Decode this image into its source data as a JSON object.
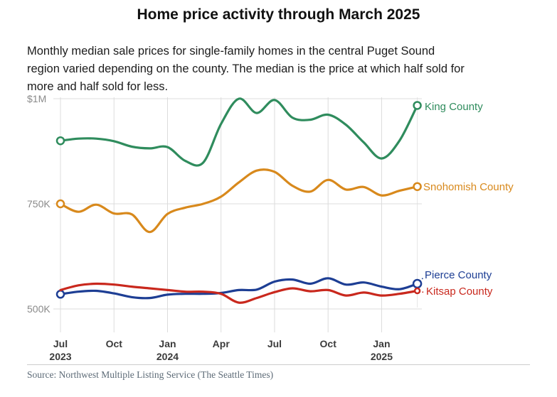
{
  "header": {
    "title": "Home price activity through March 2025",
    "subtitle_lines": [
      "Monthly median sale prices for single-family homes in the central Puget Sound",
      "region varied depending on the county. The median is the price at which half sold for",
      "more and half sold for less."
    ]
  },
  "footer": {
    "source": "Source: Northwest Multiple Listing Service (The Seattle Times)"
  },
  "chart_data": {
    "type": "line",
    "title": "Home price activity through March 2025",
    "unit": "thousand USD",
    "grid": true,
    "legend_position": "end-of-line labels",
    "ylim": [
      475,
      1010
    ],
    "x": [
      "Jul 2023",
      "Aug 2023",
      "Sep 2023",
      "Oct 2023",
      "Nov 2023",
      "Dec 2023",
      "Jan 2024",
      "Feb 2024",
      "Mar 2024",
      "Apr 2024",
      "May 2024",
      "Jun 2024",
      "Jul 2024",
      "Aug 2024",
      "Sep 2024",
      "Oct 2024",
      "Nov 2024",
      "Dec 2024",
      "Jan 2025",
      "Feb 2025",
      "Mar 2025"
    ],
    "x_ticks": [
      {
        "index": 0,
        "month": "Jul",
        "year": "2023"
      },
      {
        "index": 3,
        "month": "Oct",
        "year": ""
      },
      {
        "index": 6,
        "month": "Jan",
        "year": "2024"
      },
      {
        "index": 9,
        "month": "Apr",
        "year": ""
      },
      {
        "index": 12,
        "month": "Jul",
        "year": ""
      },
      {
        "index": 15,
        "month": "Oct",
        "year": ""
      },
      {
        "index": 18,
        "month": "Jan",
        "year": "2025"
      }
    ],
    "y_ticks": [
      {
        "value": 1000,
        "label": "$1M"
      },
      {
        "value": 750,
        "label": "750K"
      },
      {
        "value": 500,
        "label": "500K"
      }
    ],
    "series": [
      {
        "name": "King County",
        "color": "#2f8c5d",
        "values": [
          900,
          905,
          905,
          899,
          886,
          882,
          885,
          852,
          848,
          940,
          1000,
          966,
          997,
          955,
          950,
          962,
          938,
          896,
          858,
          900,
          984
        ]
      },
      {
        "name": "Snohomish County",
        "color": "#d8891c",
        "values": [
          750,
          731,
          748,
          727,
          725,
          683,
          726,
          741,
          750,
          767,
          801,
          829,
          826,
          793,
          779,
          807,
          784,
          790,
          770,
          781,
          791
        ]
      },
      {
        "name": "Pierce County",
        "color": "#1d3e94",
        "values": [
          535,
          541,
          543,
          537,
          528,
          526,
          534,
          536,
          536,
          538,
          545,
          546,
          565,
          570,
          560,
          573,
          558,
          563,
          553,
          547,
          560
        ]
      },
      {
        "name": "Kitsap County",
        "color": "#c9281d",
        "values": [
          545,
          556,
          560,
          558,
          553,
          549,
          545,
          541,
          541,
          536,
          515,
          526,
          540,
          549,
          542,
          545,
          532,
          539,
          532,
          536,
          543
        ]
      }
    ]
  }
}
